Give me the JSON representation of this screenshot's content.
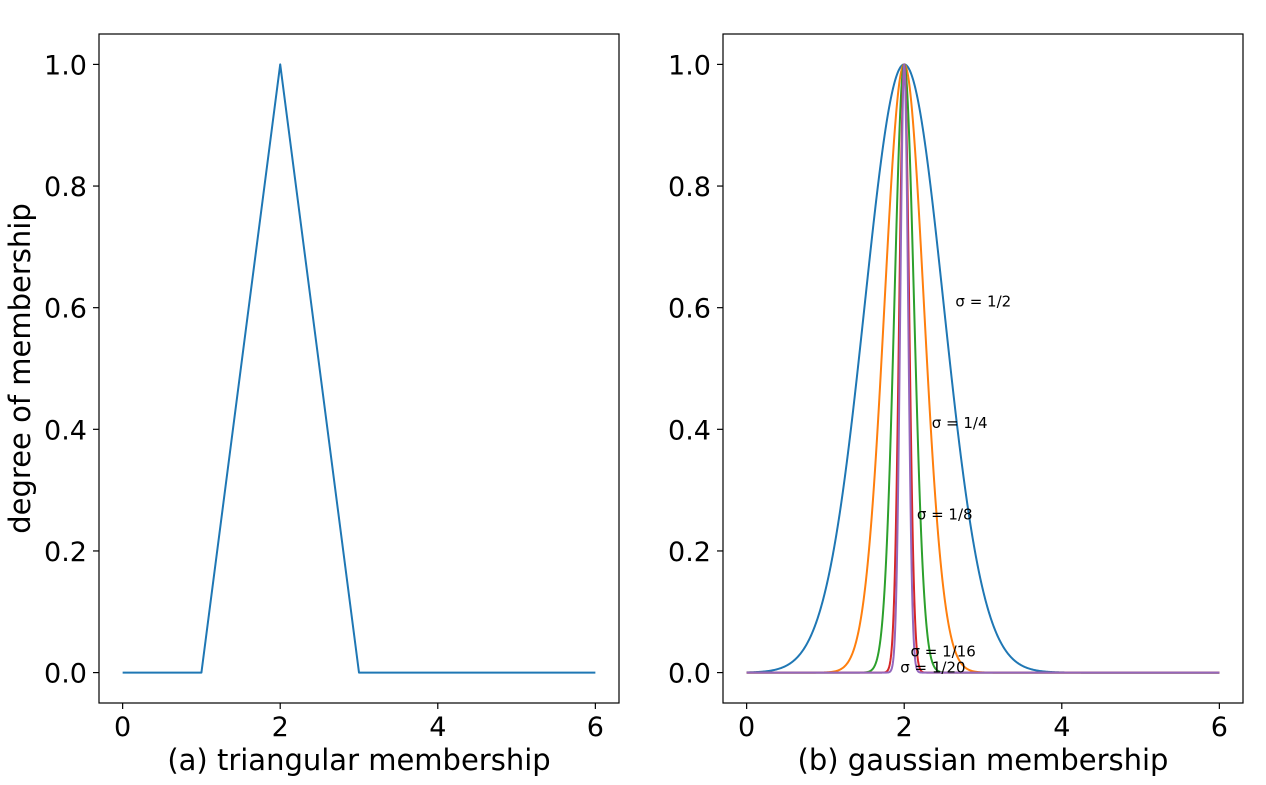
{
  "chart_data": [
    {
      "type": "line",
      "xlabel": "(a) triangular membership",
      "ylabel": "degree of membership",
      "xlim": [
        -0.3,
        6.3
      ],
      "ylim": [
        -0.05,
        1.05
      ],
      "x_ticks": [
        0,
        2,
        4,
        6
      ],
      "x_tick_labels": [
        "0",
        "2",
        "4",
        "6"
      ],
      "y_ticks": [
        0.0,
        0.2,
        0.4,
        0.6,
        0.8,
        1.0
      ],
      "y_tick_labels": [
        "0.0",
        "0.2",
        "0.4",
        "0.6",
        "0.8",
        "1.0"
      ],
      "grid": false,
      "series": [
        {
          "color": "#1f77b4",
          "x": [
            0,
            1,
            2,
            3,
            6
          ],
          "y": [
            0,
            0,
            1,
            0,
            0
          ]
        }
      ]
    },
    {
      "type": "line",
      "xlabel": "(b) gaussian membership",
      "ylabel": "",
      "xlim": [
        -0.3,
        6.3
      ],
      "ylim": [
        -0.05,
        1.05
      ],
      "x_ticks": [
        0,
        2,
        4,
        6
      ],
      "x_tick_labels": [
        "0",
        "2",
        "4",
        "6"
      ],
      "y_ticks": [
        0.0,
        0.2,
        0.4,
        0.6,
        0.8,
        1.0
      ],
      "y_tick_labels": [
        "0.0",
        "0.2",
        "0.4",
        "0.6",
        "0.8",
        "1.0"
      ],
      "grid": false,
      "function": "exp(-(x-2)^2 / (2*sigma^2))",
      "center": 2,
      "x_range": [
        0,
        6
      ],
      "series": [
        {
          "sigma": 0.5,
          "color": "#1f77b4",
          "annotation": {
            "text": "σ = 1/2",
            "x": 2.65,
            "y": 0.61
          }
        },
        {
          "sigma": 0.25,
          "color": "#ff7f0e",
          "annotation": {
            "text": "σ = 1/4",
            "x": 2.35,
            "y": 0.41
          }
        },
        {
          "sigma": 0.125,
          "color": "#2ca02c",
          "annotation": {
            "text": "σ = 1/8",
            "x": 2.16,
            "y": 0.26
          }
        },
        {
          "sigma": 0.0625,
          "color": "#d62728",
          "annotation": {
            "text": "σ = 1/16",
            "x": 2.08,
            "y": 0.035
          }
        },
        {
          "sigma": 0.05,
          "color": "#9467bd",
          "annotation": {
            "text": "σ = 1/20",
            "x": 1.95,
            "y": 0.008
          }
        }
      ]
    }
  ]
}
